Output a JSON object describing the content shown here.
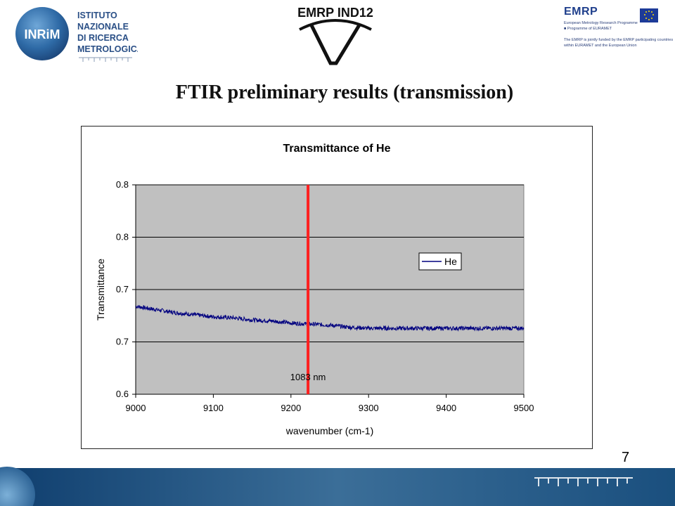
{
  "header": {
    "inrim": {
      "badge_text": "INRiM",
      "lines": [
        "ISTITUTO",
        "NAZIONALE",
        "DI RICERCA",
        "METROLOGICA"
      ]
    },
    "emrp_ind12": {
      "title": "EMRP IND12"
    },
    "emrp": {
      "word": "EMRP",
      "line1": "European Metrology Research Programme",
      "line2": "■ Programme of EURAMET",
      "line3": "The EMRP is jointly funded by the EMRP participating countries",
      "line4": "within EURAMET and the European Union"
    }
  },
  "slide": {
    "title": "FTIR preliminary results (transmission)",
    "page_number": "7"
  },
  "chart_data": {
    "type": "line",
    "title": "Transmittance of He",
    "xlabel": "wavenumber (cm-1)",
    "ylabel": "Transmittance",
    "xlim": [
      9000,
      9500
    ],
    "x_ticks": [
      9000,
      9100,
      9200,
      9300,
      9400,
      9500
    ],
    "y_ticks": [
      0.6,
      0.65,
      0.7,
      0.75,
      0.8
    ],
    "y_tick_labels": [
      "0.6",
      "0.7",
      "0.7",
      "0.8",
      "0.8"
    ],
    "ylim": [
      0.6,
      0.8
    ],
    "grid": "horizontal",
    "plot_background": "#c0c0c0",
    "legend": {
      "position": "right",
      "entries": [
        {
          "name": "He",
          "color": "#00007f"
        }
      ]
    },
    "series": [
      {
        "name": "He",
        "color": "#00007f",
        "x": [
          9000,
          9025,
          9050,
          9075,
          9100,
          9125,
          9150,
          9175,
          9200,
          9225,
          9250,
          9275,
          9300,
          9325,
          9350,
          9375,
          9400,
          9425,
          9450,
          9475,
          9500
        ],
        "values": [
          0.684,
          0.681,
          0.678,
          0.676,
          0.674,
          0.673,
          0.671,
          0.67,
          0.668,
          0.667,
          0.666,
          0.664,
          0.663,
          0.663,
          0.663,
          0.663,
          0.663,
          0.663,
          0.663,
          0.663,
          0.663
        ],
        "noise_amplitude": 0.002
      }
    ],
    "annotations": [
      {
        "type": "vline",
        "x": 9222,
        "color": "#ff2020",
        "label": "1083 nm"
      }
    ]
  }
}
